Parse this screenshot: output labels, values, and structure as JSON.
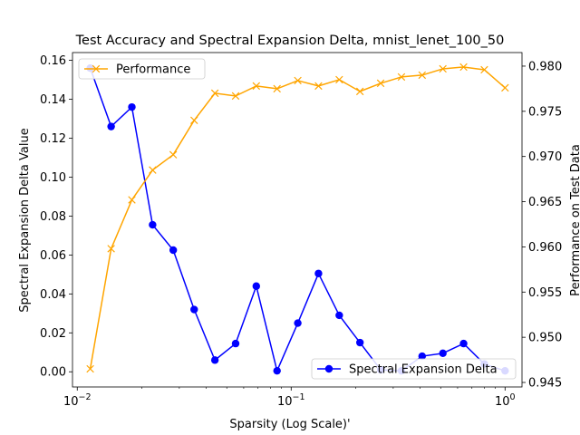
{
  "chart_data": {
    "type": "line",
    "title": "Test Accuracy and Spectral Expansion Delta, mnist_lenet_100_50",
    "xlabel": "Sparsity (Log Scale)'",
    "ylabel_left": "Spectral Expansion Delta Value",
    "ylabel_right": "Performance on Test Data",
    "x_scale": "log",
    "xlim": [
      0.0095,
      1.2
    ],
    "ylim_left": [
      -0.0078,
      0.164
    ],
    "ylim_right": [
      0.9445,
      0.9815
    ],
    "x_ticks": [
      {
        "value": 0.01,
        "base": "10",
        "exp": "−2"
      },
      {
        "value": 0.1,
        "base": "10",
        "exp": "−1"
      },
      {
        "value": 1,
        "base": "10",
        "exp": "0"
      }
    ],
    "y_ticks_left": [
      "0.00",
      "0.02",
      "0.04",
      "0.06",
      "0.08",
      "0.10",
      "0.12",
      "0.14",
      "0.16"
    ],
    "y_ticks_right": [
      "0.945",
      "0.950",
      "0.955",
      "0.960",
      "0.965",
      "0.970",
      "0.975",
      "0.980"
    ],
    "x": [
      0.0115,
      0.0144,
      0.018,
      0.0225,
      0.0281,
      0.0352,
      0.044,
      0.055,
      0.0687,
      0.0859,
      0.1074,
      0.1342,
      0.1678,
      0.2097,
      0.2621,
      0.3277,
      0.4096,
      0.512,
      0.64,
      0.8,
      1.0
    ],
    "series": [
      {
        "name": "Spectral Expansion Delta",
        "axis": "left",
        "color": "#0000ff",
        "marker": "circle",
        "values": [
          0.156,
          0.126,
          0.136,
          0.0755,
          0.0625,
          0.032,
          0.006,
          0.0145,
          0.044,
          0.0005,
          0.025,
          0.0505,
          0.029,
          0.015,
          0.001,
          0.0005,
          0.008,
          0.0095,
          0.0145,
          0.004,
          0.0005
        ]
      },
      {
        "name": "Performance",
        "axis": "right",
        "color": "#ffa500",
        "marker": "x",
        "values": [
          0.9465,
          0.9598,
          0.9652,
          0.9685,
          0.9702,
          0.974,
          0.977,
          0.9767,
          0.9778,
          0.9775,
          0.9784,
          0.9778,
          0.9785,
          0.9772,
          0.9781,
          0.9788,
          0.979,
          0.9797,
          0.9799,
          0.9796,
          0.9776
        ]
      }
    ],
    "legends": [
      {
        "placement": "upper-left",
        "series": "Performance"
      },
      {
        "placement": "lower-right",
        "series": "Spectral Expansion Delta"
      }
    ]
  }
}
